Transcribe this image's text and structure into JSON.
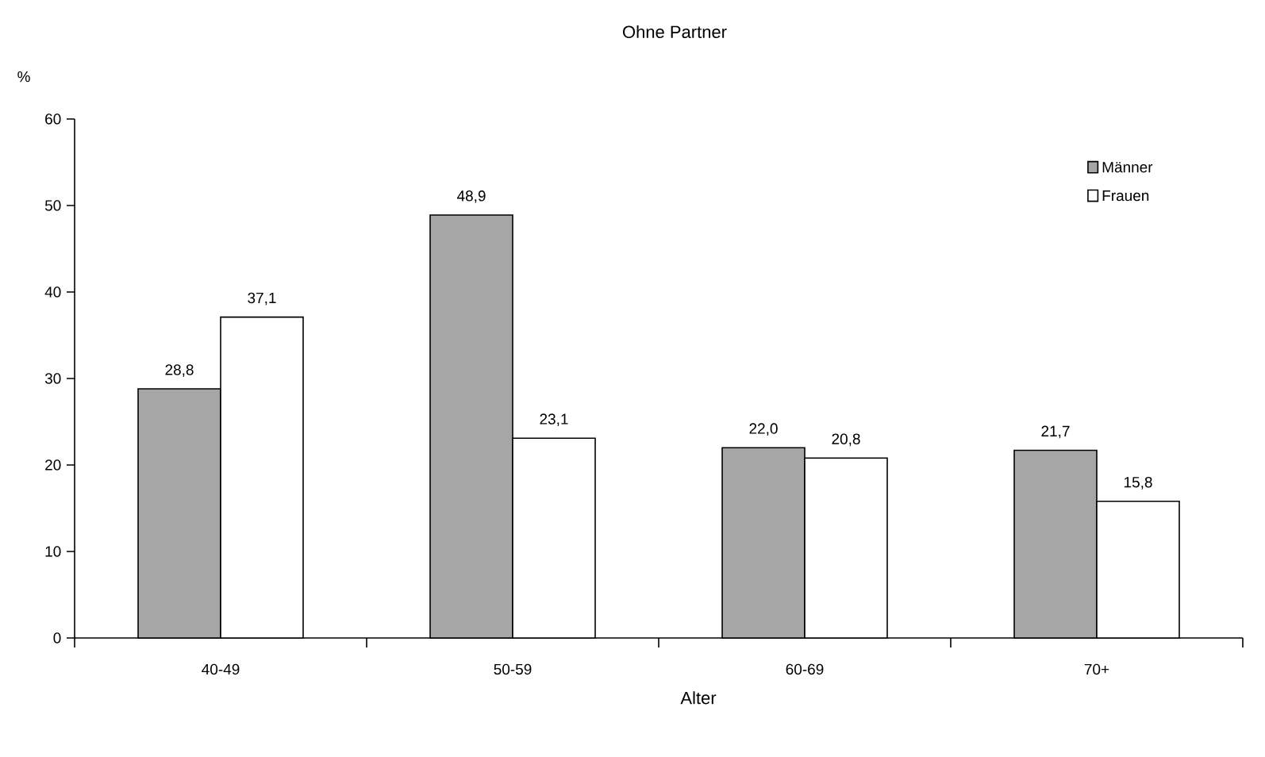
{
  "chart_data": {
    "type": "bar",
    "title": "Ohne Partner",
    "ylabel": "%",
    "xlabel": "Alter",
    "categories": [
      "40-49",
      "50-59",
      "60-69",
      "70+"
    ],
    "series": [
      {
        "name": "Männer",
        "color": "#a6a6a6",
        "values": [
          28.8,
          48.9,
          22.0,
          21.7
        ],
        "value_labels": [
          "28,8",
          "48,9",
          "22,0",
          "21,7"
        ]
      },
      {
        "name": "Frauen",
        "color": "#ffffff",
        "values": [
          37.1,
          23.1,
          20.8,
          15.8
        ],
        "value_labels": [
          "37,1",
          "23,1",
          "20,8",
          "15,8"
        ]
      }
    ],
    "ylim": [
      0,
      60
    ],
    "yticks": [
      0,
      10,
      20,
      30,
      40,
      50,
      60
    ],
    "grid": false,
    "legend": "top right"
  }
}
